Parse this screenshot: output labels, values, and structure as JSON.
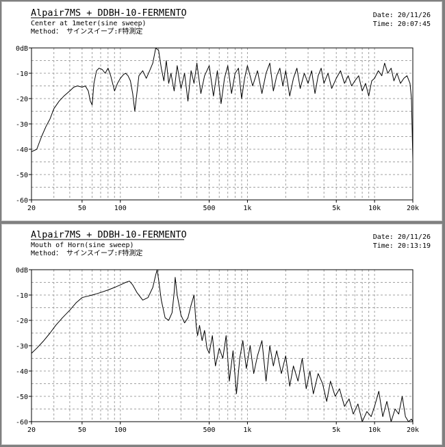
{
  "charts": [
    {
      "title": "Alpair7MS + DDBH-10-FERMENTO",
      "subtitle": "Center at 1meter(sine sweep)",
      "method": "Method： サインスイープ:F特測定",
      "date": "Date: 20/11/26",
      "time": "Time: 20:07:45"
    },
    {
      "title": "Alpair7MS + DDBH-10-FERMENTO",
      "subtitle": "Mouth of Horn(sine sweep)",
      "method": "Method： サインスイープ:F特測定",
      "date": "Date: 20/11/26",
      "time": "Time: 20:13:19"
    }
  ],
  "chart_data": [
    {
      "type": "line",
      "xscale": "log",
      "xlim": [
        20,
        20000
      ],
      "ylim": [
        -60,
        0
      ],
      "x_ticks": [
        {
          "value": 20,
          "label": "20"
        },
        {
          "value": 50,
          "label": "50"
        },
        {
          "value": 100,
          "label": "100"
        },
        {
          "value": 500,
          "label": "500"
        },
        {
          "value": 1000,
          "label": "1k"
        },
        {
          "value": 5000,
          "label": "5k"
        },
        {
          "value": 10000,
          "label": "10k"
        },
        {
          "value": 20000,
          "label": "20k"
        }
      ],
      "y_ticks": [
        {
          "value": 0,
          "label": "0dB"
        },
        {
          "value": -10,
          "label": "-10"
        },
        {
          "value": -20,
          "label": "-20"
        },
        {
          "value": -30,
          "label": "-30"
        },
        {
          "value": -40,
          "label": "-40"
        },
        {
          "value": -50,
          "label": "-50"
        },
        {
          "value": -60,
          "label": "-60"
        }
      ],
      "grid": true,
      "color": "#000000",
      "x": [
        20,
        22,
        24,
        26,
        28,
        30,
        33,
        36,
        40,
        43,
        46,
        50,
        53,
        56,
        58,
        60,
        62,
        65,
        68,
        72,
        76,
        80,
        84,
        90,
        95,
        100,
        106,
        110,
        115,
        120,
        125,
        130,
        140,
        150,
        160,
        170,
        180,
        190,
        200,
        210,
        220,
        230,
        240,
        250,
        265,
        280,
        300,
        320,
        340,
        360,
        380,
        400,
        430,
        460,
        500,
        540,
        580,
        620,
        660,
        700,
        750,
        800,
        850,
        900,
        950,
        1000,
        1100,
        1200,
        1300,
        1400,
        1500,
        1600,
        1700,
        1800,
        1900,
        2000,
        2150,
        2300,
        2450,
        2600,
        2800,
        3000,
        3200,
        3400,
        3600,
        3800,
        4000,
        4300,
        4600,
        5000,
        5400,
        5800,
        6200,
        6600,
        7000,
        7500,
        8000,
        8500,
        9000,
        9500,
        10000,
        10700,
        11400,
        12000,
        12700,
        13500,
        14200,
        15000,
        16000,
        17000,
        18000,
        19000,
        19500,
        20000
      ],
      "y": [
        -41,
        -40,
        -35,
        -31,
        -28,
        -24,
        -21,
        -19,
        -17,
        -15.5,
        -15,
        -15.5,
        -15,
        -17,
        -21,
        -22.5,
        -14,
        -9,
        -8,
        -8.5,
        -10,
        -8,
        -11,
        -17,
        -14,
        -12,
        -10.5,
        -10,
        -11,
        -13,
        -18,
        -25,
        -11,
        -9,
        -12,
        -9,
        -6,
        0,
        -1,
        -8,
        -13,
        -5,
        -14,
        -10,
        -17,
        -7,
        -16,
        -10,
        -21,
        -9,
        -14,
        -6,
        -18,
        -11,
        -7,
        -19,
        -9,
        -22,
        -12,
        -7,
        -18,
        -10,
        -8,
        -20,
        -12,
        -7,
        -15,
        -9,
        -18,
        -10,
        -6,
        -17,
        -11,
        -8,
        -15,
        -9,
        -19,
        -12,
        -8,
        -16,
        -10,
        -14,
        -9,
        -18,
        -11,
        -8,
        -14,
        -10,
        -16,
        -12,
        -9,
        -14,
        -11,
        -15,
        -13,
        -11,
        -17,
        -14,
        -19,
        -13,
        -12,
        -9,
        -11,
        -6,
        -10,
        -8,
        -13,
        -10,
        -14,
        -12,
        -11,
        -14,
        -20,
        -44
      ]
    },
    {
      "type": "line",
      "xscale": "log",
      "xlim": [
        20,
        20000
      ],
      "ylim": [
        -60,
        0
      ],
      "x_ticks": [
        {
          "value": 20,
          "label": "20"
        },
        {
          "value": 50,
          "label": "50"
        },
        {
          "value": 100,
          "label": "100"
        },
        {
          "value": 500,
          "label": "500"
        },
        {
          "value": 1000,
          "label": "1k"
        },
        {
          "value": 5000,
          "label": "5k"
        },
        {
          "value": 10000,
          "label": "10k"
        },
        {
          "value": 20000,
          "label": "20k"
        }
      ],
      "y_ticks": [
        {
          "value": 0,
          "label": "0dB"
        },
        {
          "value": -10,
          "label": "-10"
        },
        {
          "value": -20,
          "label": "-20"
        },
        {
          "value": -30,
          "label": "-30"
        },
        {
          "value": -40,
          "label": "-40"
        },
        {
          "value": -50,
          "label": "-50"
        },
        {
          "value": -60,
          "label": "-60"
        }
      ],
      "grid": true,
      "color": "#000000",
      "x": [
        20,
        22,
        25,
        28,
        31,
        35,
        40,
        45,
        50,
        55,
        60,
        65,
        70,
        80,
        90,
        100,
        110,
        118,
        125,
        135,
        150,
        165,
        180,
        190,
        195,
        200,
        210,
        225,
        240,
        255,
        265,
        270,
        280,
        300,
        320,
        340,
        360,
        380,
        395,
        405,
        420,
        440,
        460,
        480,
        500,
        530,
        560,
        600,
        640,
        680,
        720,
        770,
        820,
        870,
        920,
        980,
        1050,
        1120,
        1200,
        1300,
        1400,
        1500,
        1600,
        1700,
        1850,
        2000,
        2150,
        2300,
        2500,
        2700,
        2900,
        3100,
        3300,
        3600,
        3900,
        4200,
        4500,
        4900,
        5300,
        5800,
        6300,
        6800,
        7400,
        8000,
        8700,
        9400,
        10000,
        10800,
        11600,
        12500,
        13500,
        14500,
        15500,
        16500,
        17500,
        18500,
        19500,
        20000
      ],
      "y": [
        -33,
        -31,
        -28,
        -25,
        -22,
        -19,
        -16,
        -13,
        -11,
        -10.5,
        -10,
        -9.5,
        -9,
        -8,
        -7,
        -6,
        -5,
        -4.5,
        -6,
        -9,
        -12,
        -11,
        -7,
        -2,
        0,
        -4,
        -12,
        -19,
        -20,
        -17,
        -9,
        -3,
        -10,
        -18,
        -21,
        -19,
        -14,
        -10,
        -22,
        -26,
        -22,
        -28,
        -24,
        -31,
        -33,
        -26,
        -38,
        -31,
        -35,
        -26,
        -44,
        -32,
        -49,
        -35,
        -28,
        -39,
        -30,
        -41,
        -34,
        -28,
        -44,
        -30,
        -38,
        -32,
        -41,
        -34,
        -46,
        -38,
        -44,
        -35,
        -47,
        -40,
        -49,
        -41,
        -45,
        -52,
        -44,
        -50,
        -47,
        -54,
        -51,
        -57,
        -53,
        -60,
        -56,
        -58,
        -54,
        -48,
        -58,
        -52,
        -60,
        -55,
        -57,
        -50,
        -58,
        -60,
        -59,
        -60
      ]
    }
  ]
}
